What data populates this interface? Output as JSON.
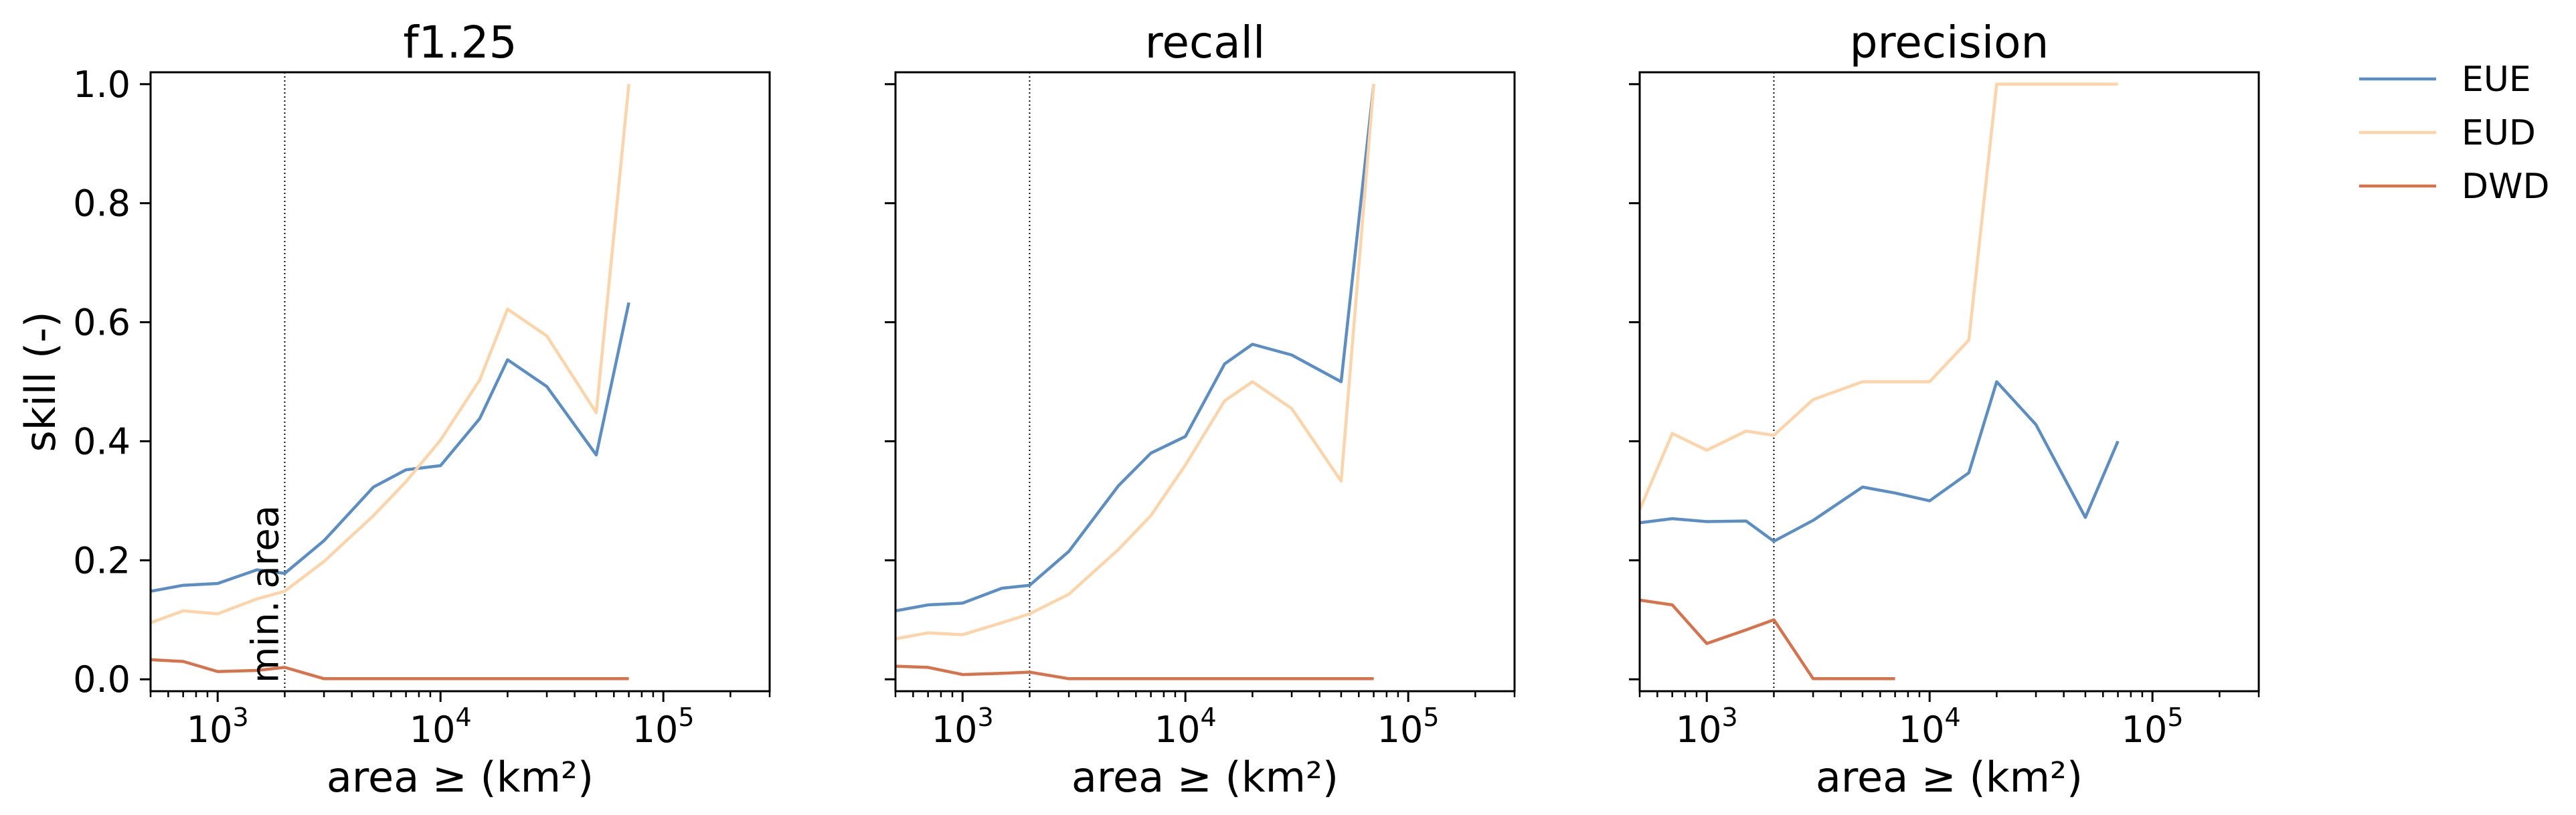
{
  "figure": {
    "shared_ylabel": "skill (-)",
    "min_area_label": "min. area"
  },
  "legend": {
    "entries": [
      {
        "name": "EUE",
        "color": "#5b8ec4"
      },
      {
        "name": "EUD",
        "color": "#fdd3a8"
      },
      {
        "name": "DWD",
        "color": "#d8724a"
      }
    ]
  },
  "chart_data": [
    {
      "type": "line",
      "title": "f1.25",
      "xlabel": "area ≥ (km²)",
      "ylabel": "skill (-)",
      "xscale": "log",
      "xlim": [
        500,
        300000
      ],
      "ylim": [
        -0.02,
        1.02
      ],
      "xticks": [
        {
          "value": 1000,
          "mant": "10",
          "exp": "3"
        },
        {
          "value": 10000,
          "mant": "10",
          "exp": "4"
        },
        {
          "value": 100000,
          "mant": "10",
          "exp": "5"
        }
      ],
      "yticks": [
        {
          "value": 0.0,
          "label": "0.0"
        },
        {
          "value": 0.2,
          "label": "0.2"
        },
        {
          "value": 0.4,
          "label": "0.4"
        },
        {
          "value": 0.6,
          "label": "0.6"
        },
        {
          "value": 0.8,
          "label": "0.8"
        },
        {
          "value": 1.0,
          "label": "1.0"
        }
      ],
      "min_area": 2000,
      "series": [
        {
          "name": "EUE",
          "color": "#5b8ec4",
          "x": [
            500,
            700,
            1000,
            1500,
            2000,
            3000,
            5000,
            7000,
            10000,
            15000,
            20000,
            30000,
            50000,
            70000
          ],
          "y": [
            0.148,
            0.158,
            0.161,
            0.184,
            0.178,
            0.233,
            0.323,
            0.352,
            0.359,
            0.438,
            0.537,
            0.492,
            0.377,
            0.633
          ]
        },
        {
          "name": "EUD",
          "color": "#fdd3a8",
          "x": [
            500,
            700,
            1000,
            1500,
            2000,
            3000,
            5000,
            7000,
            10000,
            15000,
            20000,
            30000,
            50000,
            70000
          ],
          "y": [
            0.095,
            0.115,
            0.11,
            0.135,
            0.148,
            0.198,
            0.275,
            0.332,
            0.402,
            0.503,
            0.622,
            0.577,
            0.448,
            1.0
          ]
        },
        {
          "name": "DWD",
          "color": "#d8724a",
          "x": [
            500,
            700,
            1000,
            1500,
            2000,
            3000,
            5000,
            7000,
            10000,
            15000,
            20000,
            30000,
            50000,
            70000
          ],
          "y": [
            0.033,
            0.03,
            0.013,
            0.015,
            0.02,
            0.001,
            0.001,
            0.001,
            0.001,
            0.001,
            0.001,
            0.001,
            0.001,
            0.001
          ]
        }
      ]
    },
    {
      "type": "line",
      "title": "recall",
      "xlabel": "area ≥ (km²)",
      "xscale": "log",
      "xlim": [
        500,
        300000
      ],
      "ylim": [
        -0.02,
        1.02
      ],
      "xticks": [
        {
          "value": 1000,
          "mant": "10",
          "exp": "3"
        },
        {
          "value": 10000,
          "mant": "10",
          "exp": "4"
        },
        {
          "value": 100000,
          "mant": "10",
          "exp": "5"
        }
      ],
      "yticks": [
        {
          "value": 0.0,
          "label": ""
        },
        {
          "value": 0.2,
          "label": ""
        },
        {
          "value": 0.4,
          "label": ""
        },
        {
          "value": 0.6,
          "label": ""
        },
        {
          "value": 0.8,
          "label": ""
        },
        {
          "value": 1.0,
          "label": ""
        }
      ],
      "min_area": 2000,
      "series": [
        {
          "name": "EUE",
          "color": "#5b8ec4",
          "x": [
            500,
            700,
            1000,
            1500,
            2000,
            3000,
            5000,
            7000,
            10000,
            15000,
            20000,
            30000,
            50000,
            70000
          ],
          "y": [
            0.115,
            0.125,
            0.128,
            0.153,
            0.158,
            0.215,
            0.325,
            0.38,
            0.408,
            0.53,
            0.563,
            0.545,
            0.5,
            1.0
          ]
        },
        {
          "name": "EUD",
          "color": "#fdd3a8",
          "x": [
            500,
            700,
            1000,
            1500,
            2000,
            3000,
            5000,
            7000,
            10000,
            15000,
            20000,
            30000,
            50000,
            70000
          ],
          "y": [
            0.068,
            0.078,
            0.075,
            0.095,
            0.11,
            0.143,
            0.218,
            0.275,
            0.36,
            0.468,
            0.5,
            0.455,
            0.333,
            1.0
          ]
        },
        {
          "name": "DWD",
          "color": "#d8724a",
          "x": [
            500,
            700,
            1000,
            1500,
            2000,
            3000,
            5000,
            7000,
            10000,
            15000,
            20000,
            30000,
            50000,
            70000
          ],
          "y": [
            0.022,
            0.02,
            0.008,
            0.01,
            0.012,
            0.001,
            0.001,
            0.001,
            0.001,
            0.001,
            0.001,
            0.001,
            0.001,
            0.001
          ]
        }
      ]
    },
    {
      "type": "line",
      "title": "precision",
      "xlabel": "area ≥ (km²)",
      "xscale": "log",
      "xlim": [
        500,
        300000
      ],
      "ylim": [
        -0.02,
        1.02
      ],
      "xticks": [
        {
          "value": 1000,
          "mant": "10",
          "exp": "3"
        },
        {
          "value": 10000,
          "mant": "10",
          "exp": "4"
        },
        {
          "value": 100000,
          "mant": "10",
          "exp": "5"
        }
      ],
      "yticks": [
        {
          "value": 0.0,
          "label": ""
        },
        {
          "value": 0.2,
          "label": ""
        },
        {
          "value": 0.4,
          "label": ""
        },
        {
          "value": 0.6,
          "label": ""
        },
        {
          "value": 0.8,
          "label": ""
        },
        {
          "value": 1.0,
          "label": ""
        }
      ],
      "min_area": 2000,
      "series": [
        {
          "name": "EUE",
          "color": "#5b8ec4",
          "x": [
            500,
            700,
            1000,
            1500,
            2000,
            3000,
            5000,
            7000,
            10000,
            15000,
            20000,
            30000,
            50000,
            70000
          ],
          "y": [
            0.263,
            0.27,
            0.265,
            0.266,
            0.232,
            0.267,
            0.323,
            0.313,
            0.3,
            0.347,
            0.5,
            0.428,
            0.272,
            0.4
          ]
        },
        {
          "name": "EUD",
          "color": "#fdd3a8",
          "x": [
            500,
            700,
            1000,
            1500,
            2000,
            3000,
            5000,
            7000,
            10000,
            15000,
            20000,
            30000,
            50000,
            70000
          ],
          "y": [
            0.285,
            0.413,
            0.385,
            0.417,
            0.41,
            0.47,
            0.5,
            0.5,
            0.5,
            0.57,
            1.0,
            1.0,
            1.0,
            1.0
          ]
        },
        {
          "name": "DWD",
          "color": "#d8724a",
          "x": [
            500,
            700,
            1000,
            1500,
            2000,
            3000,
            5000,
            7000
          ],
          "y": [
            0.133,
            0.125,
            0.06,
            0.083,
            0.1,
            0.001,
            0.001,
            0.001
          ]
        }
      ]
    }
  ]
}
